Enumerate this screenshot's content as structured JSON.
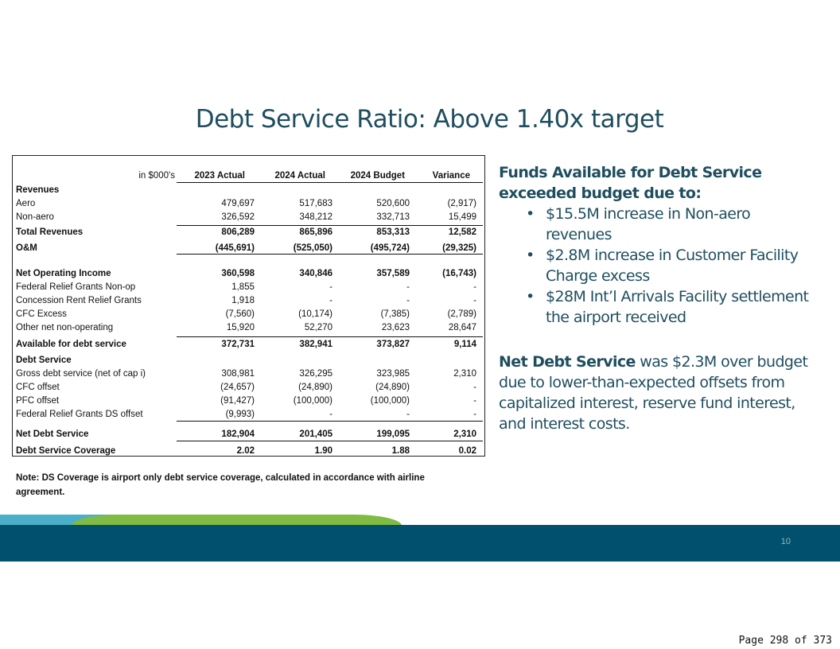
{
  "title": "Debt Service Ratio: Above 1.40x target",
  "table": {
    "unit_label": "in $000's",
    "columns": [
      "2023 Actual",
      "2024 Actual",
      "2024 Budget",
      "Variance"
    ],
    "rows": [
      {
        "label": "Revenues",
        "values": [
          "",
          "",
          "",
          ""
        ],
        "bold": true
      },
      {
        "label": "Aero",
        "values": [
          "479,697",
          "517,683",
          "520,600",
          "(2,917)"
        ]
      },
      {
        "label": "Non-aero",
        "values": [
          "326,592",
          "348,212",
          "332,713",
          "15,499"
        ]
      },
      {
        "label": "Total Revenues",
        "values": [
          "806,289",
          "865,896",
          "853,313",
          "12,582"
        ],
        "bold": true
      },
      {
        "label": "O&M",
        "values": [
          "(445,691)",
          "(525,050)",
          "(495,724)",
          "(29,325)"
        ],
        "bold": true
      },
      {
        "label": "Net Operating Income",
        "values": [
          "360,598",
          "340,846",
          "357,589",
          "(16,743)"
        ],
        "bold": true
      },
      {
        "label": "Federal Relief Grants Non-op",
        "values": [
          "1,855",
          "-",
          "-",
          "-"
        ]
      },
      {
        "label": "Concession Rent Relief Grants",
        "values": [
          "1,918",
          "-",
          "-",
          "-"
        ]
      },
      {
        "label": "CFC Excess",
        "values": [
          "(7,560)",
          "(10,174)",
          "(7,385)",
          "(2,789)"
        ]
      },
      {
        "label": "Other net non-operating",
        "values": [
          "15,920",
          "52,270",
          "23,623",
          "28,647"
        ]
      },
      {
        "label": "Available for debt service",
        "values": [
          "372,731",
          "382,941",
          "373,827",
          "9,114"
        ],
        "bold": true
      },
      {
        "label": "Debt Service",
        "values": [
          "",
          "",
          "",
          ""
        ],
        "bold": true
      },
      {
        "label": "Gross debt service (net of cap i)",
        "values": [
          "308,981",
          "326,295",
          "323,985",
          "2,310"
        ]
      },
      {
        "label": "CFC offset",
        "values": [
          "(24,657)",
          "(24,890)",
          "(24,890)",
          "-"
        ]
      },
      {
        "label": "PFC offset",
        "values": [
          "(91,427)",
          "(100,000)",
          "(100,000)",
          "-"
        ]
      },
      {
        "label": "Federal Relief Grants DS offset",
        "values": [
          "(9,993)",
          "-",
          "-",
          "-"
        ]
      },
      {
        "label": "Net Debt Service",
        "values": [
          "182,904",
          "201,405",
          "199,095",
          "2,310"
        ],
        "bold": true
      },
      {
        "label": "Debt Service Coverage",
        "values": [
          "2.02",
          "1.90",
          "1.88",
          "0.02"
        ],
        "bold": true
      }
    ]
  },
  "note": "Note:  DS Coverage is airport only debt service coverage, calculated in accordance with airline agreement.",
  "commentary": {
    "heading": "Funds Available for Debt Service exceeded budget due to:",
    "bullets": [
      "$15.5M increase in Non-aero revenues",
      "$2.8M  increase in Customer Facility Charge excess",
      "$28M Int’l Arrivals Facility settlement the airport received"
    ],
    "net_bold": "Net Debt Service",
    "net_text": " was $2.3M over budget due to lower-than-expected offsets from capitalized interest, reserve fund interest, and interest costs."
  },
  "slide_number": "10",
  "page_footer": "Page 298 of 373",
  "colors": {
    "title": "#1f4e5f",
    "band": "#00506e",
    "blue": "#4bafc9",
    "green": "#80bb44"
  }
}
